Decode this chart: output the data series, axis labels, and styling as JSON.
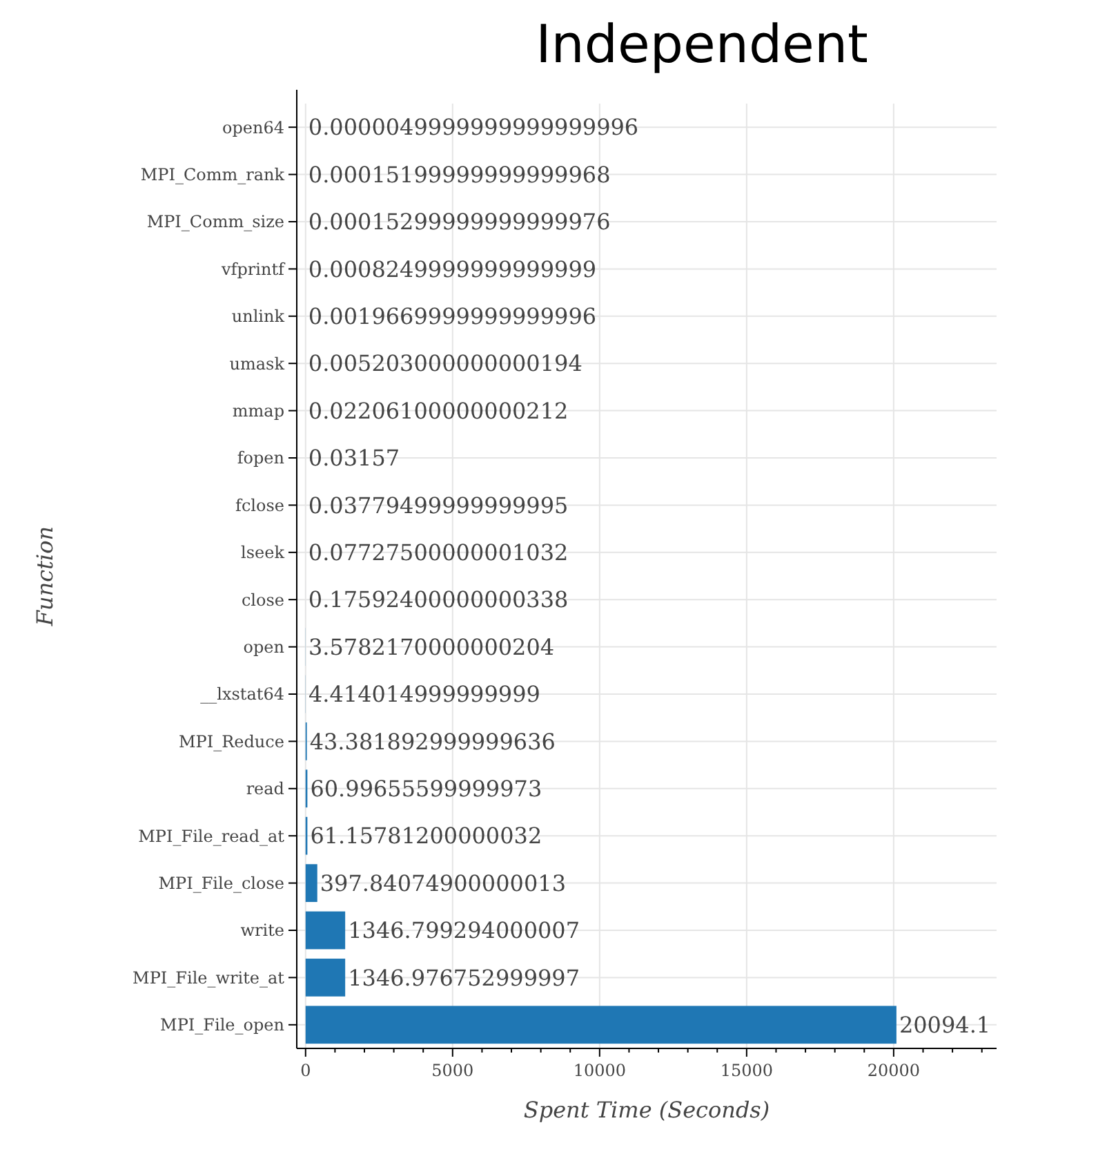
{
  "chart_data": {
    "type": "bar",
    "orientation": "horizontal",
    "title": "Independent",
    "xlabel": "Spent Time (Seconds)",
    "ylabel": "Function",
    "categories": [
      "open64",
      "MPI_Comm_rank",
      "MPI_Comm_size",
      "vfprintf",
      "unlink",
      "umask",
      "mmap",
      "fopen",
      "fclose",
      "lseek",
      "close",
      "open",
      "__lxstat64",
      "MPI_Reduce",
      "read",
      "MPI_File_read_at",
      "MPI_File_close",
      "write",
      "MPI_File_write_at",
      "MPI_File_open"
    ],
    "values": [
      5e-06,
      0.000152,
      0.000153,
      0.000825,
      0.001967,
      0.005203,
      0.022061,
      0.03157,
      0.037795,
      0.077275,
      0.175924,
      3.578217,
      4.414015,
      43.381893,
      60.996556,
      61.157812,
      397.840749,
      1346.799294000007,
      1346.976752999997,
      20094.1
    ],
    "value_labels": [
      "0.0000049999999999999996",
      "0.00015199999999999968",
      "0.00015299999999999976",
      "0.0008249999999999999",
      "0.0019669999999999996",
      "0.005203000000000194",
      "0.02206100000000212",
      "0.03157",
      "0.03779499999999995",
      "0.07727500000001032",
      "0.17592400000000338",
      "3.5782170000000204",
      "4.414014999999999",
      "43.381892999999636",
      "60.99655599999973",
      "61.15781200000032",
      "397.84074900000013",
      "1346.799294000007",
      "1346.976752999997",
      "20094.1"
    ],
    "color": "#1f77b4",
    "xlim": [
      -300,
      23500
    ],
    "xticks": [
      0,
      {
        "value": 1000,
        "label": null
      },
      {
        "value": 2000,
        "label": null
      },
      {
        "value": 3000,
        "label": null
      },
      {
        "value": 4000,
        "label": null
      },
      5000,
      {
        "value": 6000,
        "label": null
      },
      {
        "value": 7000,
        "label": null
      },
      {
        "value": 8000,
        "label": null
      },
      {
        "value": 9000,
        "label": null
      },
      10000,
      {
        "value": 11000,
        "label": null
      },
      {
        "value": 12000,
        "label": null
      },
      {
        "value": 13000,
        "label": null
      },
      {
        "value": 14000,
        "label": null
      },
      15000,
      {
        "value": 16000,
        "label": null
      },
      {
        "value": 17000,
        "label": null
      },
      {
        "value": 18000,
        "label": null
      },
      {
        "value": 19000,
        "label": null
      },
      20000,
      {
        "value": 21000,
        "label": null
      },
      {
        "value": 22000,
        "label": null
      },
      {
        "value": 23000,
        "label": null
      }
    ],
    "grid": true
  }
}
